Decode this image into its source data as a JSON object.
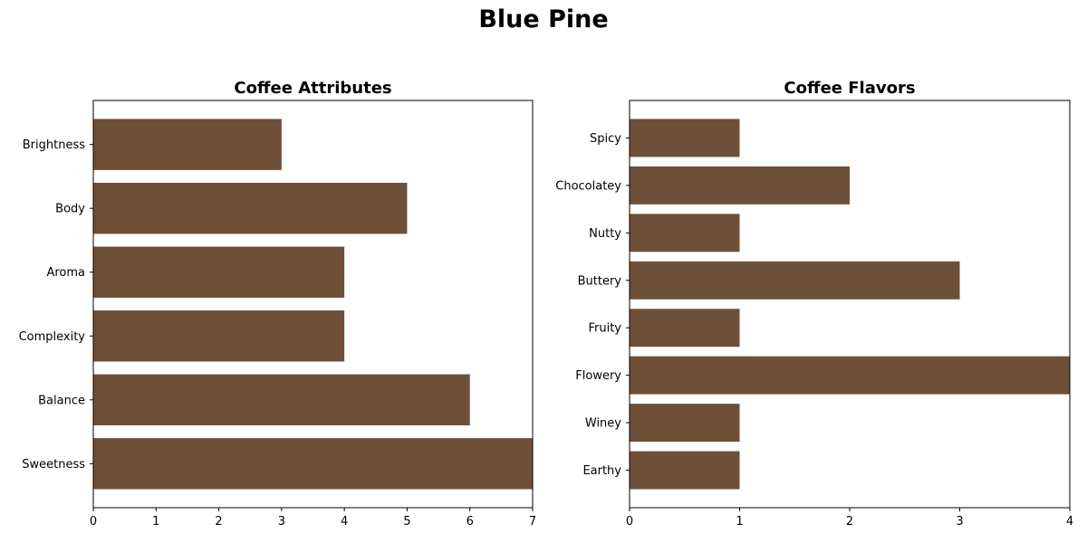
{
  "figure": {
    "title": "Blue Pine"
  },
  "colors": {
    "bar": "#6e4f37"
  },
  "chart_data": [
    {
      "type": "bar",
      "orientation": "horizontal",
      "title": "Coffee Attributes",
      "categories": [
        "Sweetness",
        "Balance",
        "Complexity",
        "Aroma",
        "Body",
        "Brightness"
      ],
      "values": [
        7,
        6,
        4,
        4,
        5,
        3
      ],
      "xlim": [
        0,
        7
      ],
      "xticks": [
        0,
        1,
        2,
        3,
        4,
        5,
        6,
        7
      ],
      "grid": false,
      "xlabel": "",
      "ylabel": ""
    },
    {
      "type": "bar",
      "orientation": "horizontal",
      "title": "Coffee Flavors",
      "categories": [
        "Earthy",
        "Winey",
        "Flowery",
        "Fruity",
        "Buttery",
        "Nutty",
        "Chocolatey",
        "Spicy"
      ],
      "values": [
        1,
        1,
        4,
        1,
        3,
        1,
        2,
        1
      ],
      "xlim": [
        0,
        4
      ],
      "xticks": [
        0,
        1,
        2,
        3,
        4
      ],
      "grid": false,
      "xlabel": "",
      "ylabel": ""
    }
  ]
}
